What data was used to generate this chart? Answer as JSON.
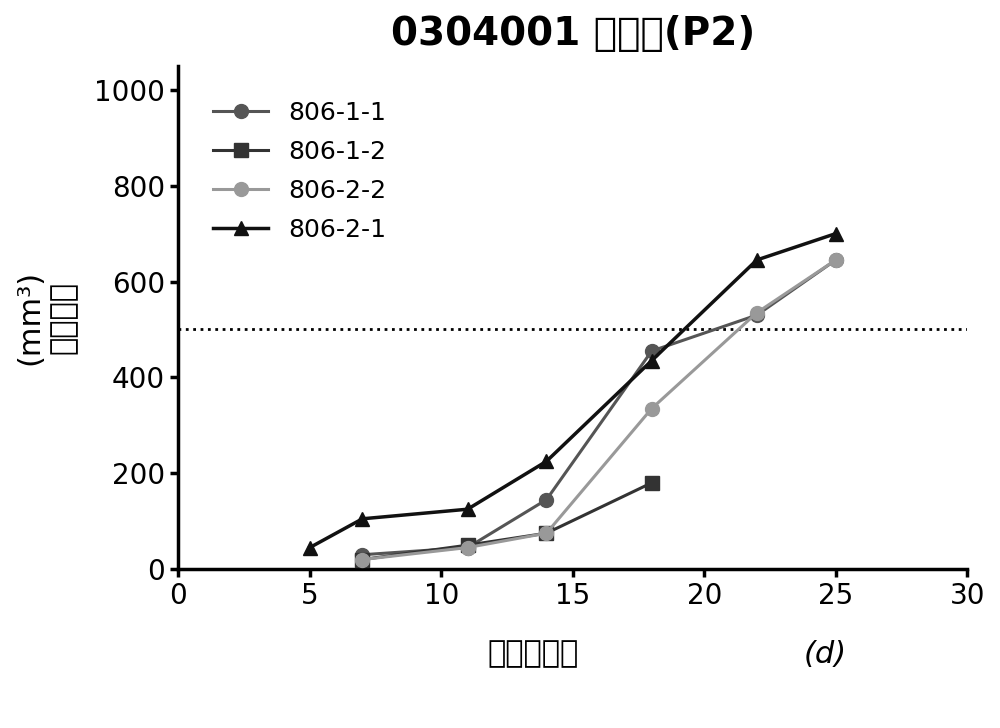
{
  "title": "0304001 胰腺癌(P2)",
  "xlabel": "接种后天数",
  "xlabel_suffix": "(d)",
  "ylabel_top": "(mm³)",
  "ylabel_bottom": "肿瘤体积",
  "xlim": [
    0,
    30
  ],
  "ylim": [
    0,
    1050
  ],
  "xticks": [
    0,
    5,
    10,
    15,
    20,
    25,
    30
  ],
  "yticks": [
    0,
    200,
    400,
    600,
    800,
    1000
  ],
  "hline_y": 500,
  "series": [
    {
      "label": "806-1-1",
      "x": [
        7,
        11,
        14,
        18,
        22,
        25
      ],
      "y": [
        30,
        45,
        145,
        455,
        530,
        645
      ],
      "color": "#555555",
      "marker": "o",
      "linewidth": 2.2
    },
    {
      "label": "806-1-2",
      "x": [
        7,
        11,
        14,
        18
      ],
      "y": [
        20,
        50,
        75,
        180
      ],
      "color": "#333333",
      "marker": "s",
      "linewidth": 2.2
    },
    {
      "label": "806-2-2",
      "x": [
        7,
        11,
        14,
        18,
        22,
        25
      ],
      "y": [
        20,
        45,
        75,
        335,
        535,
        645
      ],
      "color": "#999999",
      "marker": "o",
      "linewidth": 2.2
    },
    {
      "label": "806-2-1",
      "x": [
        5,
        7,
        11,
        14,
        18,
        22,
        25
      ],
      "y": [
        45,
        105,
        125,
        225,
        435,
        645,
        700
      ],
      "color": "#111111",
      "marker": "^",
      "linewidth": 2.5
    }
  ],
  "background_color": "#ffffff",
  "title_fontsize": 28,
  "axis_label_fontsize": 22,
  "tick_fontsize": 20,
  "legend_fontsize": 18
}
